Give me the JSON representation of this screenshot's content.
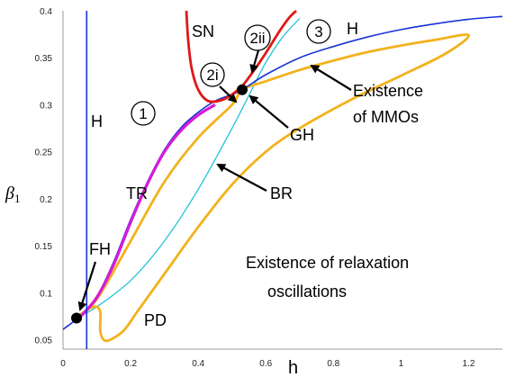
{
  "chart_data": {
    "type": "line",
    "title": "",
    "xlabel": "h",
    "ylabel": "β",
    "ylabel_sub": "1",
    "xlim": [
      0,
      1.3
    ],
    "ylim": [
      0.04,
      0.4
    ],
    "xticks": [
      "0",
      "0.2",
      "0.4",
      "0.6",
      "0.8",
      "1",
      "1.2"
    ],
    "yticks": [
      "0.05",
      "0.1",
      "0.15",
      "0.2",
      "0.25",
      "0.3",
      "0.35",
      "0.4"
    ],
    "grid": false,
    "series": [
      {
        "name": "H",
        "color": "#1a33d6",
        "x": [
          0.07,
          0.07
        ],
        "y": [
          0.04,
          0.4
        ]
      },
      {
        "name": "H",
        "color": "#1a33d6",
        "x": [
          0.0,
          0.05,
          0.1,
          0.15,
          0.2,
          0.25,
          0.3,
          0.35,
          0.4,
          0.45,
          0.5,
          0.53,
          0.6,
          0.7,
          0.8,
          0.9,
          1.0,
          1.1,
          1.2,
          1.3
        ],
        "y": [
          0.061,
          0.075,
          0.096,
          0.133,
          0.178,
          0.218,
          0.252,
          0.276,
          0.292,
          0.304,
          0.311,
          0.316,
          0.332,
          0.35,
          0.362,
          0.372,
          0.38,
          0.386,
          0.391,
          0.394
        ]
      },
      {
        "name": "SN",
        "color": "#e01818",
        "x": [
          0.365,
          0.37,
          0.38,
          0.4,
          0.43,
          0.47,
          0.5,
          0.53,
          0.56,
          0.6,
          0.64,
          0.67,
          0.69
        ],
        "y": [
          0.4,
          0.37,
          0.34,
          0.316,
          0.304,
          0.305,
          0.311,
          0.32,
          0.334,
          0.355,
          0.378,
          0.393,
          0.4
        ]
      },
      {
        "name": "TR",
        "color": "#d81ad8",
        "x": [
          0.05,
          0.1,
          0.15,
          0.2,
          0.25,
          0.3,
          0.35,
          0.4,
          0.45
        ],
        "y": [
          0.074,
          0.095,
          0.13,
          0.175,
          0.216,
          0.25,
          0.273,
          0.289,
          0.3
        ]
      },
      {
        "name": "BR",
        "color": "#22c4d8",
        "x": [
          0.04,
          0.1,
          0.2,
          0.3,
          0.4,
          0.5,
          0.55,
          0.6,
          0.65,
          0.7
        ],
        "y": [
          0.073,
          0.085,
          0.113,
          0.155,
          0.21,
          0.275,
          0.31,
          0.345,
          0.372,
          0.392
        ]
      },
      {
        "name": "PD",
        "color": "#f2b21c",
        "x": [
          0.04,
          0.1,
          0.2,
          0.3,
          0.4,
          0.5,
          0.53,
          0.6,
          0.7,
          0.8,
          0.9,
          1.0,
          1.1,
          1.2,
          1.13,
          1.0,
          0.85,
          0.7,
          0.6,
          0.5,
          0.4,
          0.3,
          0.22,
          0.18,
          0.14,
          0.12,
          0.11,
          0.11,
          0.09,
          0.04
        ],
        "y": [
          0.074,
          0.093,
          0.155,
          0.218,
          0.265,
          0.3,
          0.316,
          0.325,
          0.337,
          0.347,
          0.356,
          0.363,
          0.369,
          0.374,
          0.354,
          0.331,
          0.305,
          0.275,
          0.25,
          0.215,
          0.17,
          0.12,
          0.08,
          0.06,
          0.05,
          0.05,
          0.06,
          0.08,
          0.085,
          0.074
        ]
      }
    ],
    "points": [
      {
        "name": "FH",
        "x": 0.04,
        "y": 0.073
      },
      {
        "name": "GH",
        "x": 0.53,
        "y": 0.316
      }
    ],
    "annotations": {
      "sn": "SN",
      "h_left": "H",
      "h_right": "H",
      "tr": "TR",
      "br": "BR",
      "pd": "PD",
      "fh": "FH",
      "gh": "GH",
      "region_1": "1",
      "region_2i_top": "2ii",
      "region_2i": "2i",
      "region_3": "3",
      "mmo_line1": "Existence",
      "mmo_line2": "of MMOs",
      "relax_line1": "Existence of relaxation",
      "relax_line2": "oscillations"
    }
  }
}
